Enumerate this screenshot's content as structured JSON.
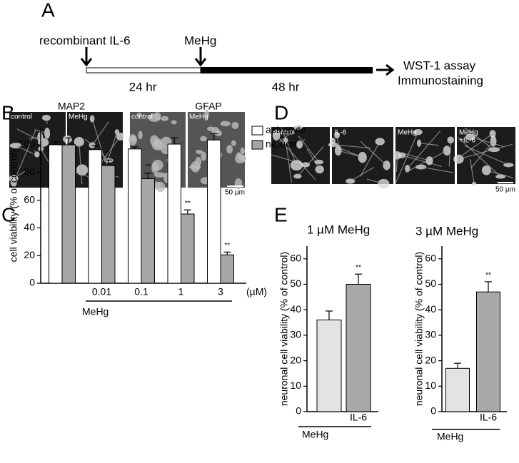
{
  "panel_labels": [
    "A",
    "B",
    "C",
    "D",
    "E"
  ],
  "timeline": {
    "treatment": "recombinant  IL-6",
    "toxicant": "MeHg",
    "first_period": "24 hr",
    "second_period": "48 hr",
    "readouts": [
      "WST-1 assay",
      "Immunostaining"
    ]
  },
  "micrographs_b": {
    "groups": [
      "MAP2",
      "GFAP"
    ],
    "images": [
      "control",
      "MeHg",
      "control",
      "MeHg"
    ],
    "scale": "50 µm"
  },
  "micrographs_d": {
    "images": [
      [
        "control"
      ],
      [
        "IL-6"
      ],
      [
        "MeHg"
      ],
      [
        "MeHg",
        "+IL-6"
      ]
    ],
    "scale": "50 µm"
  },
  "chart_data": [
    {
      "type": "bar",
      "ylabel": "cell viability (% of control)",
      "categories": [
        null,
        "0.01",
        "0.1",
        "1",
        "3"
      ],
      "x_unit": "(µM)",
      "group_label": "MeHg",
      "series": [
        {
          "name": "astrocyte",
          "color": "#ffffff",
          "values": [
            100,
            96.5,
            97,
            100.5,
            103.5
          ],
          "errors": [
            2,
            3,
            1.5,
            4.5,
            4.5
          ],
          "significance": [
            null,
            null,
            null,
            null,
            null
          ]
        },
        {
          "name": "neruon",
          "color": "#a6a6a6",
          "values": [
            100,
            85,
            75.5,
            50,
            20.5
          ],
          "errors": [
            5,
            4,
            4,
            3,
            2
          ],
          "significance": [
            null,
            "*",
            "**",
            "**",
            "**"
          ]
        }
      ],
      "ylim": [
        0,
        112
      ],
      "yticks": [
        0,
        20,
        40,
        60,
        80,
        100
      ],
      "legend": "upper right"
    },
    {
      "type": "bar",
      "title": "1 µM MeHg",
      "ylabel": "neuronal cell viability (% of control)",
      "categories": [
        null,
        "IL-6"
      ],
      "group_label": "MeHg",
      "values": [
        36,
        50
      ],
      "errors": [
        3.5,
        4
      ],
      "significance": [
        null,
        "**"
      ],
      "colors": [
        "#e3e3e3",
        "#a9a9a9"
      ],
      "ylim": [
        0,
        65
      ],
      "yticks": [
        0,
        10,
        20,
        30,
        40,
        50,
        60
      ]
    },
    {
      "type": "bar",
      "title": "3 µM MeHg",
      "ylabel": "neuronal cell viability (% of control)",
      "categories": [
        null,
        "IL-6"
      ],
      "group_label": "MeHg",
      "values": [
        17,
        47
      ],
      "errors": [
        2,
        4
      ],
      "significance": [
        null,
        "**"
      ],
      "colors": [
        "#e3e3e3",
        "#a9a9a9"
      ],
      "ylim": [
        0,
        65
      ],
      "yticks": [
        0,
        10,
        20,
        30,
        40,
        50,
        60
      ]
    }
  ]
}
